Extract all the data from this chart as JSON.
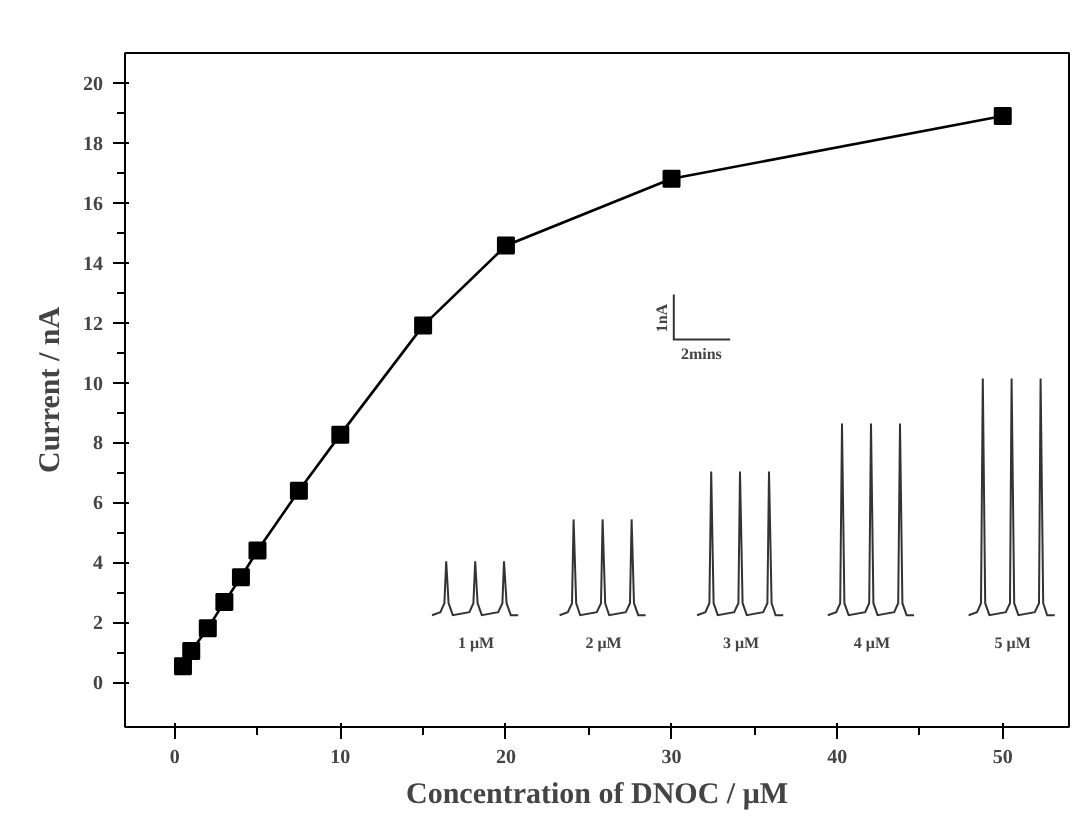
{
  "chart_data": {
    "type": "line",
    "xlabel": "Concentration of DNOC / μM",
    "ylabel": "Current / nA",
    "x": [
      0.5,
      1,
      2,
      3,
      4,
      5,
      7.5,
      10,
      15,
      20,
      30,
      50
    ],
    "series": [
      {
        "color": "#000000",
        "values": [
          0.53,
          1.04,
          1.8,
          2.67,
          3.5,
          4.39,
          6.39,
          8.26,
          11.9,
          14.57,
          16.8,
          18.9
        ]
      }
    ],
    "xlim": [
      -3,
      54
    ],
    "ylim": [
      -1.5,
      21
    ],
    "xticks": [
      0,
      10,
      20,
      30,
      40,
      50
    ],
    "yticks": [
      0,
      2,
      4,
      6,
      8,
      10,
      12,
      14,
      16,
      18,
      20
    ],
    "marker": "square",
    "line_style": "solid",
    "grid": false,
    "annotations": [
      "1nA",
      "2mins",
      "1 μM",
      "2 μM",
      "3 μM",
      "4 μM",
      "5 μM"
    ]
  }
}
